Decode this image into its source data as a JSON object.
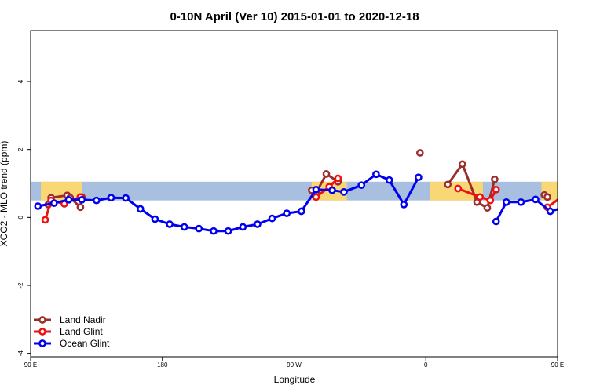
{
  "chart_data": {
    "type": "line",
    "title": "0-10N April (Ver 10)   2015-01-01 to 2020-12-18",
    "xlabel": "Longitude",
    "ylabel": "XCO2 - MLO trend (ppm)",
    "xlim": [
      90,
      450
    ],
    "ylim": [
      -4.1,
      5.5
    ],
    "xticks": [
      {
        "value": 90,
        "label": "90 E"
      },
      {
        "value": 180,
        "label": "180"
      },
      {
        "value": 270,
        "label": "90 W"
      },
      {
        "value": 360,
        "label": "0"
      },
      {
        "value": 450,
        "label": "90 E"
      },
      {
        "value": 540,
        "label": "180"
      }
    ],
    "yticks": [
      {
        "value": -4,
        "label": "-4"
      },
      {
        "value": -2,
        "label": "-2"
      },
      {
        "value": 0,
        "label": "0"
      },
      {
        "value": 2,
        "label": "2"
      },
      {
        "value": 4,
        "label": "4"
      }
    ],
    "grid": false,
    "legend_position": "bottom-left",
    "background": {
      "band_color": "#a9bfdf",
      "band_y": [
        0.5,
        1.05
      ],
      "land_color": "#f8d774",
      "land_segments": [
        [
          97,
          125
        ],
        [
          282,
          306
        ],
        [
          363,
          399
        ],
        [
          439,
          474
        ],
        [
          485,
          514
        ]
      ]
    },
    "series": [
      {
        "name": "Land Nadir",
        "color": "#9b2d2d",
        "points": [
          [
            102,
            0.38
          ],
          [
            104,
            0.58
          ],
          [
            115,
            0.65
          ],
          [
            117,
            0.58
          ],
          [
            124,
            0.3
          ],
          [
            125,
            0.6
          ],
          null,
          [
            282,
            0.8
          ],
          [
            285,
            0.72
          ],
          [
            292,
            1.28
          ],
          [
            300,
            1.05
          ],
          null,
          [
            356,
            1.9
          ],
          null,
          [
            375,
            0.97
          ],
          [
            385,
            1.57
          ],
          [
            395,
            0.45
          ],
          [
            402,
            0.28
          ],
          [
            407,
            1.12
          ],
          null,
          [
            441,
            0.66
          ],
          [
            443,
            0.6
          ],
          null,
          [
            460,
            0.55
          ],
          [
            465,
            0.5
          ],
          [
            476,
            0.6
          ],
          [
            482,
            0.3
          ]
        ]
      },
      {
        "name": "Land Glint",
        "color": "#ee1111",
        "points": [
          [
            100,
            -0.07
          ],
          [
            104,
            0.5
          ],
          [
            113,
            0.4
          ],
          [
            124,
            0.6
          ],
          null,
          [
            285,
            0.6
          ],
          [
            294,
            0.9
          ],
          [
            300,
            1.15
          ],
          null,
          [
            382,
            0.85
          ],
          [
            397,
            0.6
          ],
          [
            404,
            0.5
          ],
          [
            408,
            0.82
          ],
          null,
          [
            443,
            0.3
          ],
          [
            455,
            0.67
          ],
          [
            460,
            -0.07
          ],
          [
            462,
            0.6
          ],
          [
            475,
            0.65
          ],
          [
            482,
            0.57
          ]
        ]
      },
      {
        "name": "Ocean Glint",
        "color": "#0000ee",
        "points": [
          [
            95,
            0.33
          ],
          [
            106,
            0.42
          ],
          [
            116,
            0.52
          ],
          [
            125,
            0.52
          ],
          [
            135,
            0.5
          ],
          [
            145,
            0.58
          ],
          [
            155,
            0.57
          ],
          [
            165,
            0.25
          ],
          [
            175,
            -0.05
          ],
          [
            185,
            -0.2
          ],
          [
            195,
            -0.28
          ],
          [
            205,
            -0.33
          ],
          [
            215,
            -0.4
          ],
          [
            225,
            -0.4
          ],
          [
            235,
            -0.28
          ],
          [
            245,
            -0.2
          ],
          [
            255,
            -0.03
          ],
          [
            265,
            0.12
          ],
          [
            275,
            0.18
          ],
          [
            285,
            0.82
          ],
          [
            296,
            0.8
          ],
          [
            304,
            0.75
          ],
          [
            316,
            0.95
          ],
          [
            326,
            1.27
          ],
          [
            335,
            1.1
          ],
          [
            345,
            0.38
          ],
          [
            355,
            1.18
          ],
          null,
          [
            408,
            -0.12
          ],
          [
            415,
            0.45
          ],
          [
            425,
            0.45
          ],
          [
            435,
            0.53
          ],
          [
            445,
            0.18
          ],
          [
            455,
            0.3
          ],
          [
            465,
            0.42
          ],
          [
            475,
            0.48
          ],
          [
            485,
            0.5
          ],
          [
            495,
            0.5
          ],
          [
            505,
            0.57
          ],
          [
            515,
            0.57
          ],
          [
            525,
            0.25
          ],
          [
            535,
            -0.05
          ]
        ]
      }
    ]
  }
}
